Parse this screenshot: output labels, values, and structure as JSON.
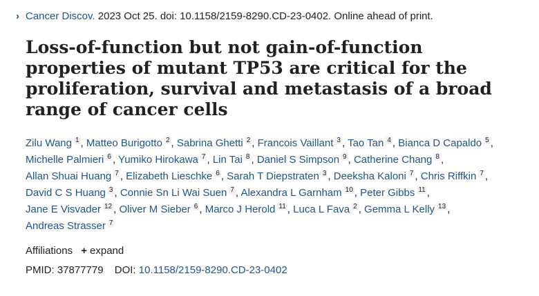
{
  "citation": {
    "journal": "Cancer Discov.",
    "details": " 2023 Oct 25. doi: 10.1158/2159-8290.CD-23-0402. Online ahead of print."
  },
  "title": "Loss-of-function but not gain-of-function properties of mutant TP53 are critical for the proliferation, survival and metastasis of a broad range of cancer cells",
  "authors": [
    {
      "name": "Zilu Wang",
      "aff": "1"
    },
    {
      "name": "Matteo Burigotto",
      "aff": "2"
    },
    {
      "name": "Sabrina Ghetti",
      "aff": "2"
    },
    {
      "name": "Francois Vaillant",
      "aff": "3"
    },
    {
      "name": "Tao Tan",
      "aff": "4"
    },
    {
      "name": "Bianca D Capaldo",
      "aff": "5"
    },
    {
      "name": "Michelle Palmieri",
      "aff": "6"
    },
    {
      "name": "Yumiko Hirokawa",
      "aff": "7"
    },
    {
      "name": "Lin Tai",
      "aff": "8"
    },
    {
      "name": "Daniel S Simpson",
      "aff": "9"
    },
    {
      "name": "Catherine Chang",
      "aff": "8"
    },
    {
      "name": "Allan Shuai Huang",
      "aff": "7"
    },
    {
      "name": "Elizabeth Lieschke",
      "aff": "6"
    },
    {
      "name": "Sarah T Diepstraten",
      "aff": "3"
    },
    {
      "name": "Deeksha Kaloni",
      "aff": "7"
    },
    {
      "name": "Chris Riffkin",
      "aff": "7"
    },
    {
      "name": "David C S Huang",
      "aff": "3"
    },
    {
      "name": "Connie Sn Li Wai Suen",
      "aff": "7"
    },
    {
      "name": "Alexandra L Garnham",
      "aff": "10"
    },
    {
      "name": "Peter Gibbs",
      "aff": "11"
    },
    {
      "name": "Jane E Visvader",
      "aff": "12"
    },
    {
      "name": "Oliver M Sieber",
      "aff": "6"
    },
    {
      "name": "Marco J Herold",
      "aff": "11"
    },
    {
      "name": "Luca L Fava",
      "aff": "2"
    },
    {
      "name": "Gemma L Kelly",
      "aff": "13"
    },
    {
      "name": "Andreas Strasser",
      "aff": "7"
    }
  ],
  "affiliations": {
    "label": "Affiliations",
    "plus": "+",
    "expand_label": "expand"
  },
  "identifiers": {
    "pmid_label": "PMID:",
    "pmid": "37877779",
    "doi_label": "DOI:",
    "doi": "10.1158/2159-8290.CD-23-0402"
  }
}
